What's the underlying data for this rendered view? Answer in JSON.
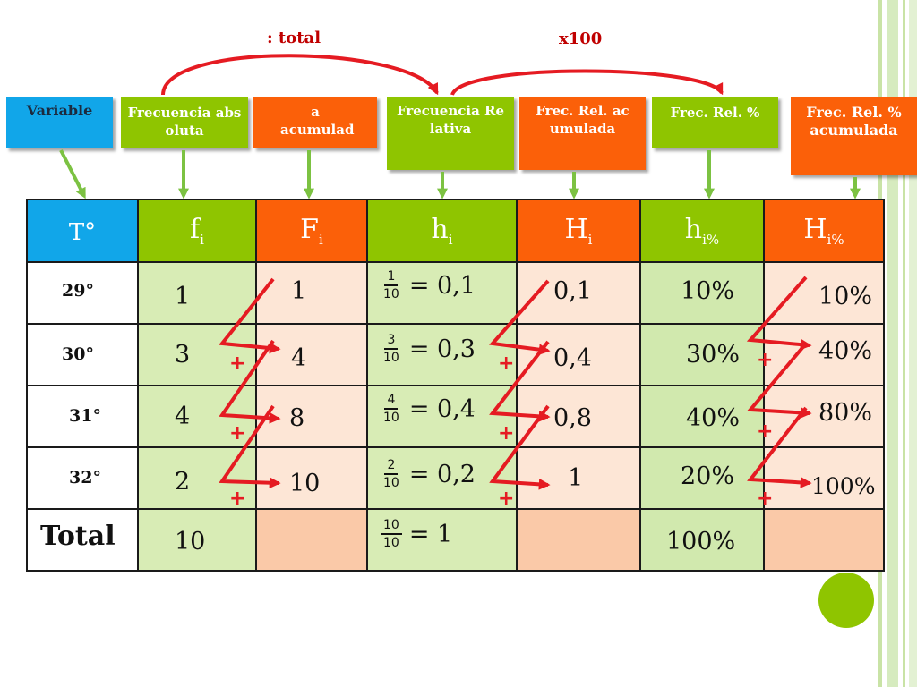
{
  "annotations": {
    "total_label": ": total",
    "x100_label": "x100"
  },
  "labels": {
    "variable": "Variable",
    "frec_absoluta": "Frecuencia absoluta",
    "frec_acumulada": "a acumulad",
    "frec_relativa": "Frecuencia Relativa",
    "frec_rel_acumulada": "Frec. Rel. acumulada",
    "frec_rel_pct": "Frec. Rel. %",
    "frec_rel_pct_acumulada": "Frec. Rel. % acumulada"
  },
  "headers": {
    "temp": "T°",
    "fi": "f",
    "fi_sub": "i",
    "Fi": "F",
    "Fi_sub": "i",
    "hi": "h",
    "hi_sub": "i",
    "Hi": "H",
    "Hi_sub": "i",
    "hip": "h",
    "hip_sub": "i%",
    "Hip": "H",
    "Hip_sub": "i%"
  },
  "rows": [
    {
      "temp": "29°",
      "fi": "1",
      "Fi": "1",
      "num": "1",
      "den": "10",
      "hi": "= 0,1",
      "Hi": "0,1",
      "hip": "10%",
      "Hip": "10%"
    },
    {
      "temp": "30°",
      "fi": "3",
      "Fi": "4",
      "num": "3",
      "den": "10",
      "hi": "= 0,3",
      "Hi": "0,4",
      "hip": "30%",
      "Hip": "40%"
    },
    {
      "temp": "31°",
      "fi": "4",
      "Fi": "8",
      "num": "4",
      "den": "10",
      "hi": "= 0,4",
      "Hi": "0,8",
      "hip": "40%",
      "Hip": "80%"
    },
    {
      "temp": "32°",
      "fi": "2",
      "Fi": "10",
      "num": "2",
      "den": "10",
      "hi": "= 0,2",
      "Hi": "1",
      "hip": "20%",
      "Hip": "100%"
    }
  ],
  "total": {
    "label": "Total",
    "fi": "10",
    "num": "10",
    "den": "10",
    "hi": "= 1",
    "hip": "100%"
  },
  "plus_sign": "+",
  "colors": {
    "blue": "#11a6e9",
    "green": "#8fc500",
    "orange": "#fb6009",
    "arrow_red": "#e51b22",
    "arrow_green": "#7cc242"
  }
}
